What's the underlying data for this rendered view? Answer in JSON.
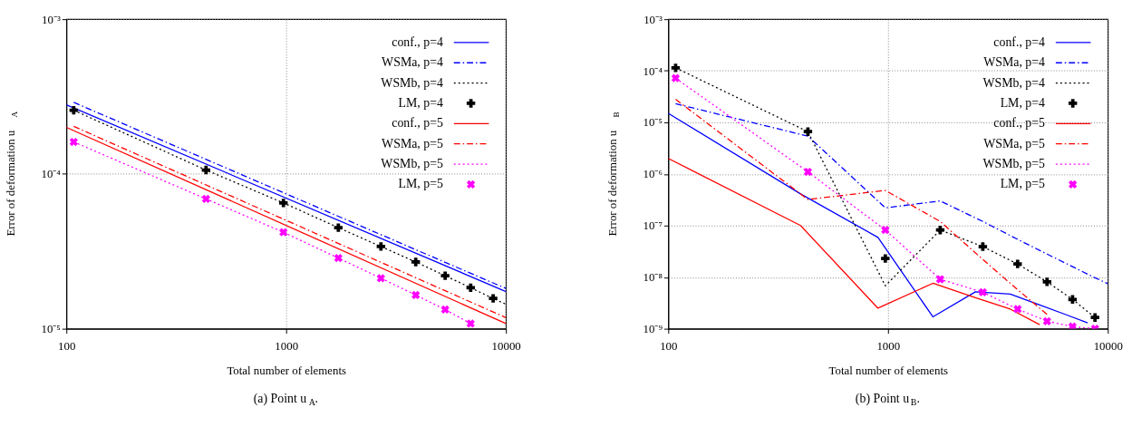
{
  "chart_data": [
    {
      "type": "line",
      "xlabel": "Total number of elements",
      "ylabel": "Error of deformation u$_{A}$",
      "log": "xy",
      "grid": true,
      "legend": "top right",
      "xlim": [
        100,
        10000
      ],
      "xticks": [
        100,
        1000,
        10000
      ],
      "ylim": [
        1e-05,
        0.001
      ],
      "yticks": [
        {
          "value": 1e-05,
          "label": "10⁻⁵"
        },
        {
          "value": 0.0001,
          "label": "10⁻⁴"
        },
        {
          "value": 0.001,
          "label": "10⁻³"
        }
      ],
      "annotations": [
        "(a) Point u$_{A}$."
      ],
      "series": [
        {
          "name": "conf., p=4",
          "color": "#0000ff",
          "line_style": "solid",
          "x": [
            100,
            10000
          ],
          "values": [
            0.00028,
            1.74e-05
          ]
        },
        {
          "name": "WSMa, p=4",
          "color": "#0000ff",
          "line_style": "dashdot",
          "x": [
            108,
            10000
          ],
          "values": [
            0.00029,
            1.82e-05
          ]
        },
        {
          "name": "WSMb, p=4",
          "color": "#000000",
          "line_style": "dotted",
          "x": [
            108,
            432,
            972,
            1728,
            2700,
            3888,
            5292,
            6912,
            8748,
            10000
          ],
          "values": [
            0.000258,
            0.000106,
            6.5e-05,
            4.5e-05,
            3.4e-05,
            2.7e-05,
            2.2e-05,
            1.84e-05,
            1.57e-05,
            1.44e-05
          ]
        },
        {
          "name": "LM, p=4",
          "type": "scatter",
          "marker": "cross",
          "color": "#000000",
          "x": [
            108,
            432,
            972,
            1728,
            2700,
            3888,
            5292,
            6912,
            8748
          ],
          "values": [
            0.000258,
            0.000106,
            6.5e-05,
            4.5e-05,
            3.4e-05,
            2.7e-05,
            2.2e-05,
            1.84e-05,
            1.57e-05
          ]
        },
        {
          "name": "conf., p=5",
          "color": "#ff0000",
          "line_style": "solid",
          "x": [
            100,
            10000
          ],
          "values": [
            0.0002,
            1.08e-05
          ]
        },
        {
          "name": "WSMa, p=5",
          "color": "#ff0000",
          "line_style": "dashdot",
          "x": [
            108,
            10000
          ],
          "values": [
            0.000203,
            1.18e-05
          ]
        },
        {
          "name": "WSMb, p=5",
          "color": "#ff00ff",
          "line_style": "dotted",
          "x": [
            108,
            432,
            972,
            1728,
            2700,
            3888,
            5292,
            6912
          ],
          "values": [
            0.000161,
            6.9e-05,
            4.2e-05,
            2.86e-05,
            2.12e-05,
            1.65e-05,
            1.33e-05,
            1.08e-05
          ]
        },
        {
          "name": "LM, p=5",
          "type": "scatter",
          "marker": "x",
          "color": "#ff00ff",
          "x": [
            108,
            432,
            972,
            1728,
            2700,
            3888,
            5292,
            6912
          ],
          "values": [
            0.000161,
            6.9e-05,
            4.2e-05,
            2.86e-05,
            2.12e-05,
            1.65e-05,
            1.33e-05,
            1.08e-05
          ]
        }
      ]
    },
    {
      "type": "line",
      "xlabel": "Total number of elements",
      "ylabel": "Error of deformation u$_{B}$",
      "log": "xy",
      "grid": true,
      "legend": "top right",
      "xlim": [
        100,
        10000
      ],
      "xticks": [
        100,
        1000,
        10000
      ],
      "ylim": [
        1e-09,
        0.001
      ],
      "yticks": [
        {
          "value": 1e-09,
          "label": "10⁻⁹"
        },
        {
          "value": 1e-08,
          "label": "10⁻⁸"
        },
        {
          "value": 1e-07,
          "label": "10⁻⁷"
        },
        {
          "value": 1e-06,
          "label": "10⁻⁶"
        },
        {
          "value": 1e-05,
          "label": "10⁻⁵"
        },
        {
          "value": 0.0001,
          "label": "10⁻⁴"
        },
        {
          "value": 0.001,
          "label": "10⁻³"
        }
      ],
      "annotations": [
        "(b) Point u$_{B}$."
      ],
      "series": [
        {
          "name": "conf., p=4",
          "color": "#0000ff",
          "line_style": "solid",
          "x": [
            100,
            400,
            900,
            1600,
            2500,
            3600,
            4900,
            6400,
            8100
          ],
          "values": [
            1.5e-05,
            4.1e-07,
            5.9e-08,
            1.7e-09,
            5.2e-09,
            4.7e-09,
            2.9e-09,
            1.9e-09,
            1.3e-09
          ]
        },
        {
          "name": "WSMa, p=4",
          "color": "#0000ff",
          "line_style": "dashdot",
          "x": [
            108,
            432,
            972,
            1728,
            2700,
            3888,
            5292,
            6912,
            8748,
            10000
          ],
          "values": [
            2.3e-05,
            5.4e-06,
            2.2e-07,
            3e-07,
            1.2e-07,
            5.4e-08,
            2.8e-08,
            1.6e-08,
            9.7e-09,
            7.5e-09
          ]
        },
        {
          "name": "WSMb, p=4",
          "color": "#000000",
          "line_style": "dotted",
          "x": [
            108,
            432,
            972,
            1728,
            2700,
            3888,
            5292,
            6912,
            8748
          ],
          "values": [
            0.000114,
            6.6e-06,
            6.8e-09,
            8.2e-08,
            3.9e-08,
            1.8e-08,
            8.1e-09,
            3.7e-09,
            1.65e-09
          ]
        },
        {
          "name": "LM, p=4",
          "type": "scatter",
          "marker": "cross",
          "color": "#000000",
          "x": [
            108,
            432,
            972,
            1728,
            2700,
            3888,
            5292,
            6912,
            8748
          ],
          "values": [
            0.000114,
            6.6e-06,
            2.3e-08,
            8.2e-08,
            3.9e-08,
            1.8e-08,
            8.1e-09,
            3.7e-09,
            1.65e-09
          ]
        },
        {
          "name": "conf., p=5",
          "color": "#ff0000",
          "line_style": "solid",
          "x": [
            100,
            400,
            900,
            1600,
            2500,
            3600,
            4900
          ],
          "values": [
            2e-06,
            1e-07,
            2.5e-09,
            7.6e-09,
            4e-09,
            2.4e-09,
            1.2e-09
          ]
        },
        {
          "name": "WSMa, p=5",
          "color": "#ff0000",
          "line_style": "dashdot",
          "x": [
            108,
            432,
            972,
            1728,
            2700,
            3888,
            5292
          ],
          "values": [
            2.8e-05,
            3.2e-07,
            4.8e-07,
            1.2e-07,
            2.2e-08,
            5.7e-09,
            1.9e-09
          ]
        },
        {
          "name": "WSMb, p=5",
          "color": "#ff00ff",
          "line_style": "dotted",
          "x": [
            108,
            432,
            972,
            1728,
            2700,
            3888,
            5292,
            6912,
            8748
          ],
          "values": [
            7.2e-05,
            1.1e-06,
            8.2e-08,
            9.1e-09,
            5.1e-09,
            2.4e-09,
            1.4e-09,
            1.1e-09,
            1e-09
          ]
        },
        {
          "name": "LM, p=5",
          "type": "scatter",
          "marker": "x",
          "color": "#ff00ff",
          "x": [
            108,
            432,
            972,
            1728,
            2700,
            3888,
            5292,
            6912,
            8748
          ],
          "values": [
            7.2e-05,
            1.1e-06,
            8.2e-08,
            9.1e-09,
            5.1e-09,
            2.4e-09,
            1.4e-09,
            1.1e-09,
            1e-09
          ]
        }
      ]
    }
  ]
}
